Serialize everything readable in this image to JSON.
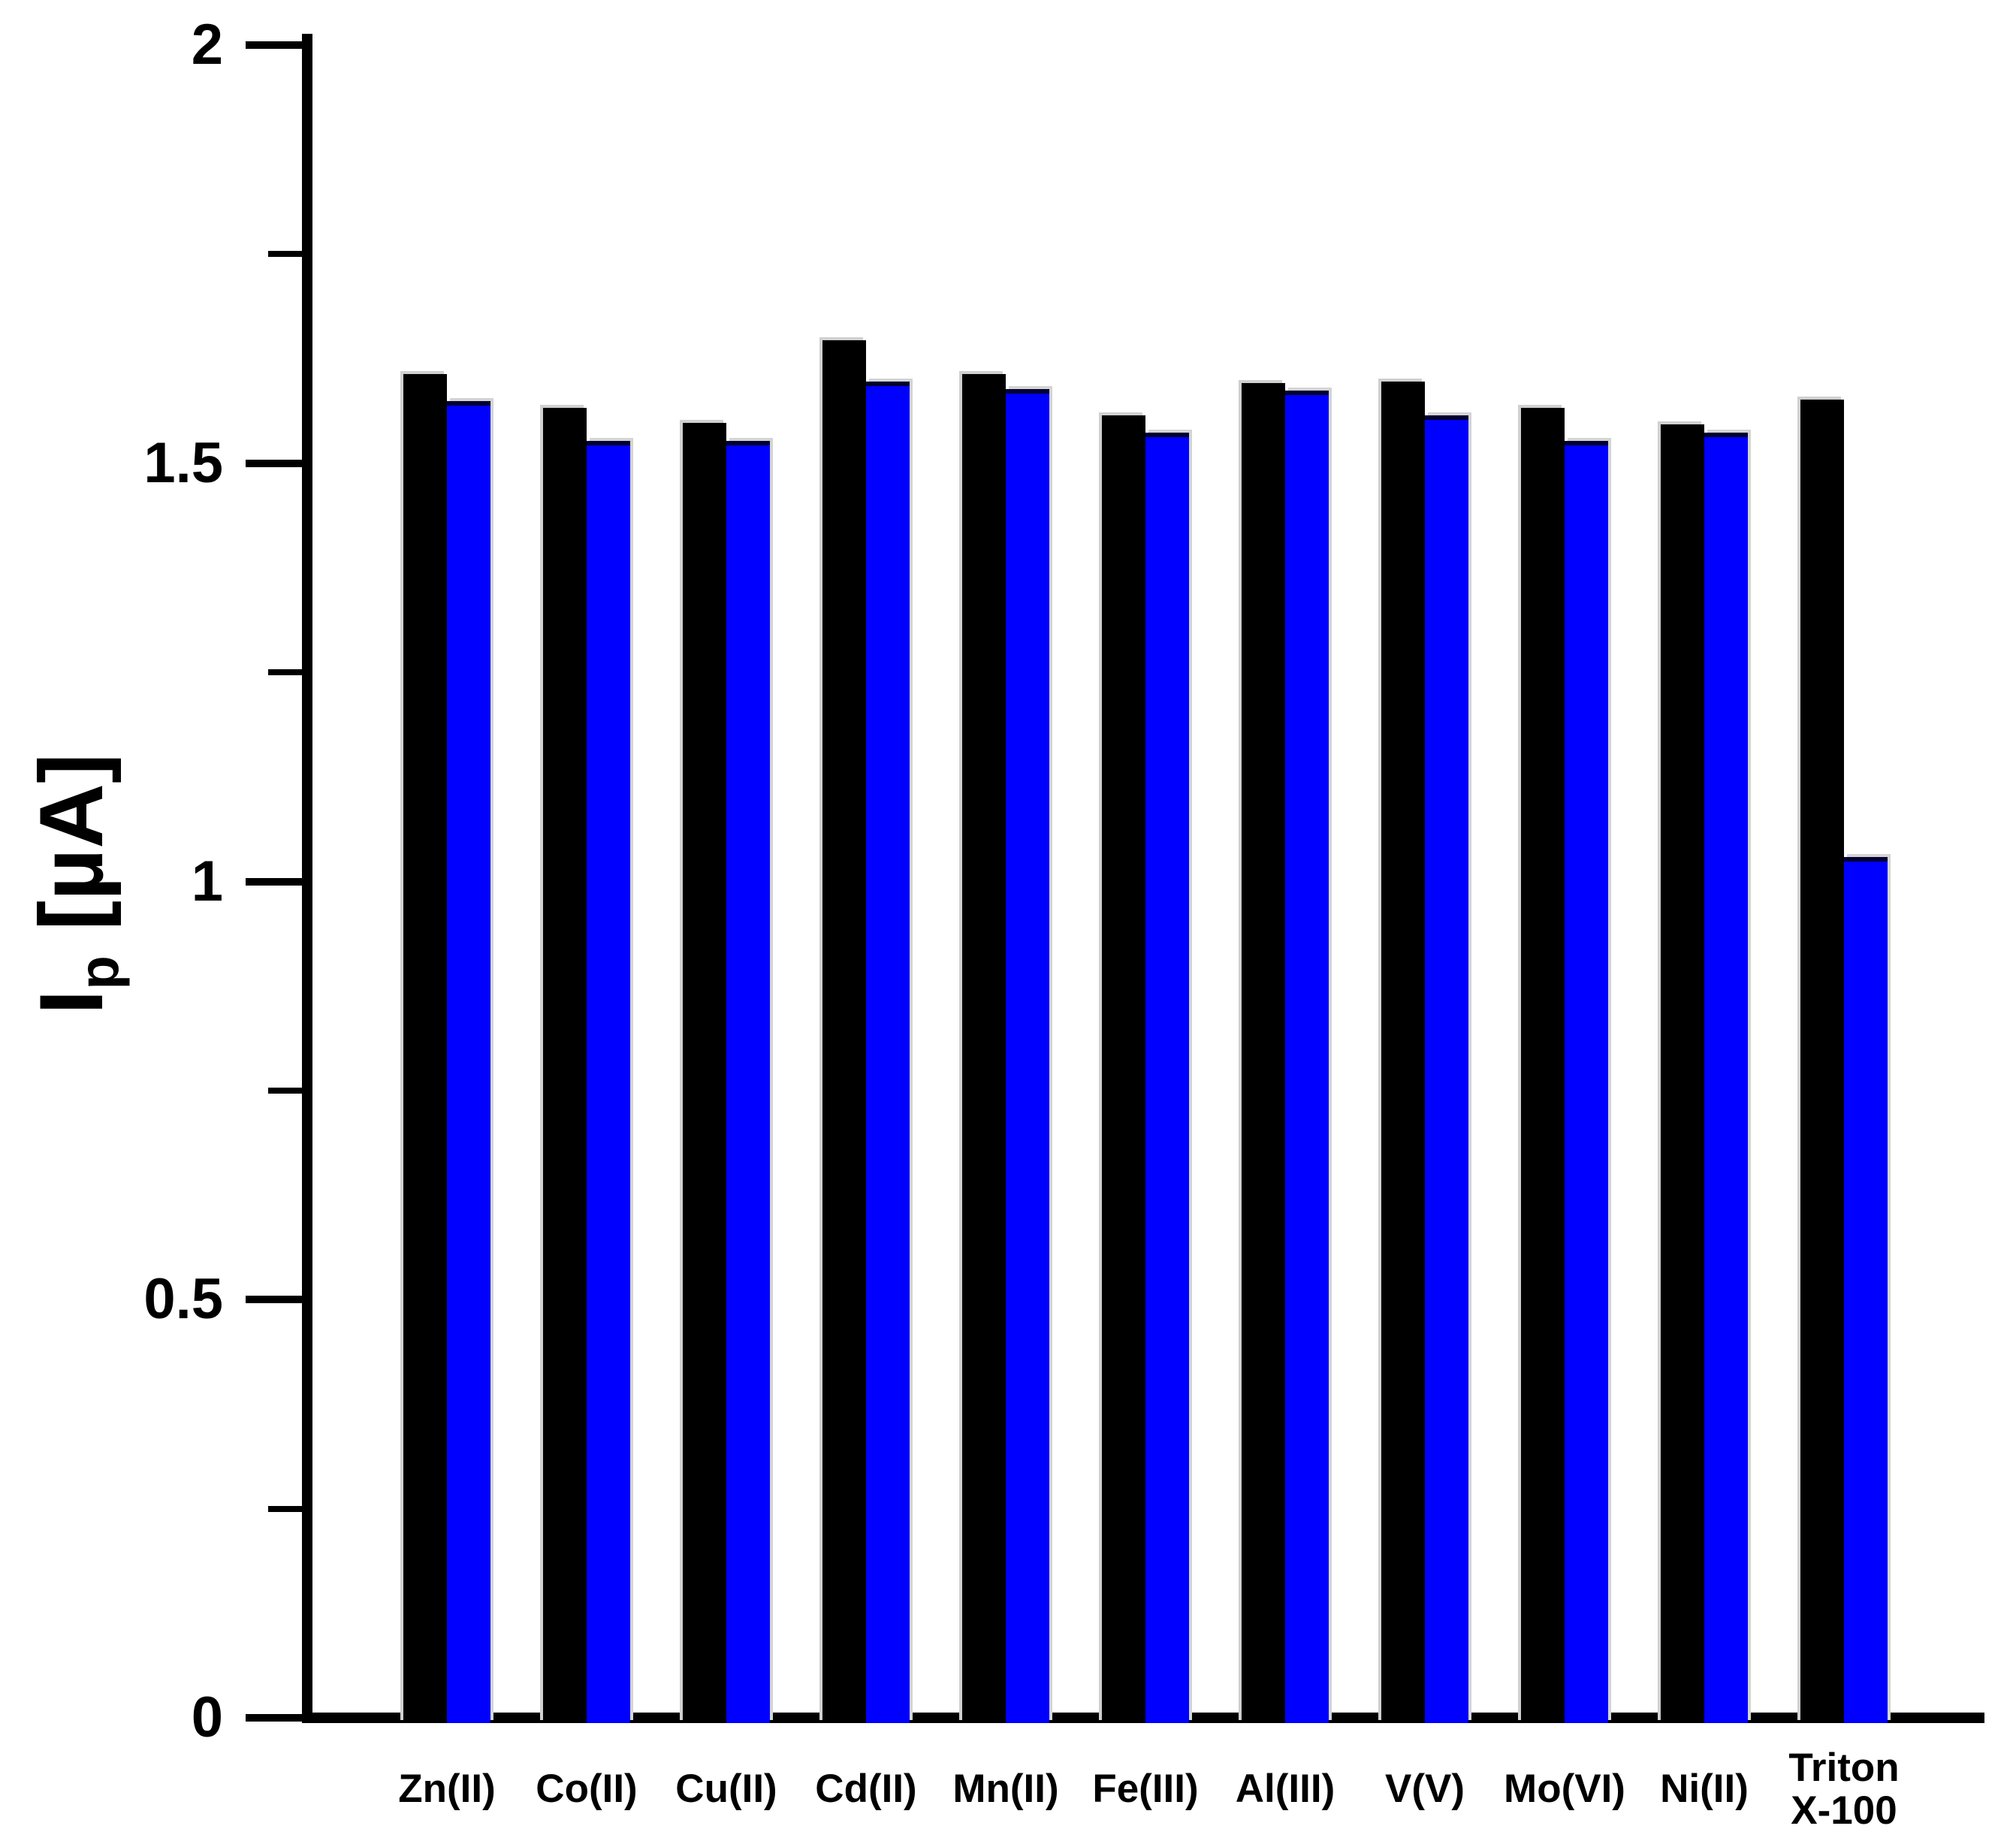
{
  "figure": {
    "background_color": "#ffffff",
    "axis_color": "#000000"
  },
  "chart_data": {
    "type": "bar",
    "title": "",
    "ylabel": {
      "prefix": "I",
      "subscript": "p",
      "suffix": " [µA]"
    },
    "ylabel_text": "Ip [µA]",
    "ylim": [
      0,
      2
    ],
    "ytick_values": [
      0,
      0.5,
      1,
      1.5,
      2
    ],
    "ytick_labels": [
      "0",
      "0.5",
      "1",
      "1.5",
      "2"
    ],
    "yminor_tick_values": [
      0.25,
      0.75,
      1.25,
      1.75
    ],
    "grid": "off",
    "legend": "none",
    "categories": [
      "Zn(II)",
      "Co(II)",
      "Cu(II)",
      "Cd(II)",
      "Mn(II)",
      "Fe(III)",
      "Al(III)",
      "V(V)",
      "Mo(VI)",
      "Ni(II)",
      "Triton X-100"
    ],
    "category_label_lines": [
      [
        "Zn(II)"
      ],
      [
        "Co(II)"
      ],
      [
        "Cu(II)"
      ],
      [
        "Cd(II)"
      ],
      [
        "Mn(II)"
      ],
      [
        "Fe(III)"
      ],
      [
        "Al(III)"
      ],
      [
        "V(V)"
      ],
      [
        "Mo(VI)"
      ],
      [
        "Ni(II)"
      ],
      [
        "Triton",
        "X-100"
      ]
    ],
    "series": [
      {
        "name": "black",
        "color": "#000000",
        "values": [
          1.6,
          1.56,
          1.542,
          1.641,
          1.6,
          1.551,
          1.59,
          1.591,
          1.56,
          1.54,
          1.57
        ]
      },
      {
        "name": "blue",
        "color": "#0000ff",
        "values": [
          1.568,
          1.52,
          1.52,
          1.591,
          1.582,
          1.53,
          1.581,
          1.551,
          1.52,
          1.53,
          1.023
        ]
      }
    ]
  }
}
